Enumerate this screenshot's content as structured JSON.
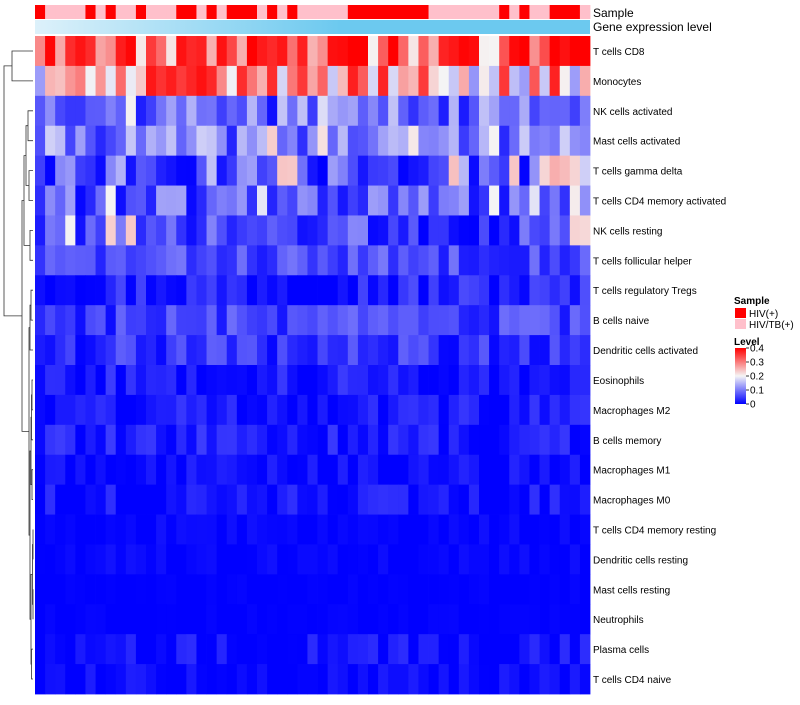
{
  "chart_data": {
    "type": "heatmap",
    "title": "",
    "annotation_tracks": [
      {
        "name": "Sample",
        "label": "Sample"
      },
      {
        "name": "Gene expression level",
        "label": "Gene expression level"
      }
    ],
    "sample_groups": [
      "HIV(+)",
      "HIV/TB(+)",
      "HIV/TB(+)",
      "HIV/TB(+)",
      "HIV/TB(+)",
      "HIV(+)",
      "HIV/TB(+)",
      "HIV(+)",
      "HIV/TB(+)",
      "HIV/TB(+)",
      "HIV(+)",
      "HIV/TB(+)",
      "HIV/TB(+)",
      "HIV/TB(+)",
      "HIV(+)",
      "HIV(+)",
      "HIV/TB(+)",
      "HIV(+)",
      "HIV/TB(+)",
      "HIV(+)",
      "HIV(+)",
      "HIV(+)",
      "HIV/TB(+)",
      "HIV(+)",
      "HIV/TB(+)",
      "HIV(+)",
      "HIV/TB(+)",
      "HIV/TB(+)",
      "HIV/TB(+)",
      "HIV/TB(+)",
      "HIV/TB(+)",
      "HIV(+)",
      "HIV(+)",
      "HIV(+)",
      "HIV(+)",
      "HIV(+)",
      "HIV(+)",
      "HIV(+)",
      "HIV(+)",
      "HIV/TB(+)",
      "HIV/TB(+)",
      "HIV/TB(+)",
      "HIV/TB(+)",
      "HIV/TB(+)",
      "HIV/TB(+)",
      "HIV/TB(+)",
      "HIV(+)",
      "HIV/TB(+)",
      "HIV(+)",
      "HIV/TB(+)",
      "HIV/TB(+)",
      "HIV(+)",
      "HIV(+)",
      "HIV(+)",
      "HIV/TB(+)"
    ],
    "rows": [
      "T cells CD8",
      "Monocytes",
      "NK cells activated",
      "Mast cells activated",
      "T cells gamma delta",
      "T cells CD4 memory activated",
      "NK cells resting",
      "T cells follicular helper",
      "T cells regulatory  Tregs",
      "B cells naive",
      "Dendritic cells activated",
      "Eosinophils",
      "Macrophages M2",
      "B cells memory",
      "Macrophages M1",
      "Macrophages M0",
      "T cells CD4 memory resting",
      "Dendritic cells resting",
      "Mast cells resting",
      "Neutrophils",
      "Plasma cells",
      "T cells CD4 naive"
    ],
    "row_profiles": [
      {
        "base": 0.33,
        "spread": 0.08,
        "seed": 11,
        "hot": [
          1,
          4,
          9,
          14,
          18,
          21,
          24,
          30,
          31,
          35,
          41,
          42,
          43,
          47,
          48,
          51,
          52,
          53
        ],
        "hot_value": 0.4,
        "cold": [
          10,
          13,
          33,
          37,
          44,
          45
        ],
        "cold_value": 0.2
      },
      {
        "base": 0.24,
        "spread": 0.09,
        "seed": 23,
        "hot": [
          11,
          12,
          13,
          14,
          15,
          16,
          17,
          20,
          23,
          26,
          31,
          34,
          38,
          46,
          51
        ],
        "hot_value": 0.37,
        "cold": [
          0,
          43,
          48,
          53
        ],
        "cold_value": 0.12
      },
      {
        "base": 0.1,
        "spread": 0.06,
        "seed": 37,
        "hot": [
          9,
          28,
          40
        ],
        "hot_value": 0.2,
        "cold": [
          10,
          23,
          40,
          42
        ],
        "cold_value": 0.01
      },
      {
        "base": 0.1,
        "spread": 0.07,
        "seed": 41,
        "hot": [
          23,
          28,
          37,
          45
        ],
        "hot_value": 0.22,
        "cold": [],
        "cold_value": 0.01
      },
      {
        "base": 0.09,
        "spread": 0.08,
        "seed": 53,
        "hot": [
          24,
          25,
          41,
          47,
          50,
          51,
          52,
          53
        ],
        "hot_value": 0.24,
        "cold": [
          1,
          6,
          13,
          14,
          15,
          28,
          36,
          37,
          43,
          48
        ],
        "cold_value": 0.0
      },
      {
        "base": 0.07,
        "spread": 0.07,
        "seed": 61,
        "hot": [
          7,
          22,
          45,
          49,
          53
        ],
        "hot_value": 0.2,
        "cold": [],
        "cold_value": 0.0
      },
      {
        "base": 0.05,
        "spread": 0.06,
        "seed": 73,
        "hot": [
          3,
          7,
          9,
          53,
          54
        ],
        "hot_value": 0.22,
        "cold": [],
        "cold_value": 0.0
      },
      {
        "base": 0.06,
        "spread": 0.04,
        "seed": 83,
        "hot": [],
        "hot_value": 0.14,
        "cold": [],
        "cold_value": 0.0
      },
      {
        "base": 0.03,
        "spread": 0.04,
        "seed": 97,
        "hot": [],
        "hot_value": 0.12,
        "cold": [],
        "cold_value": 0.0
      },
      {
        "base": 0.05,
        "spread": 0.04,
        "seed": 103,
        "hot": [],
        "hot_value": 0.12,
        "cold": [],
        "cold_value": 0.0
      },
      {
        "base": 0.04,
        "spread": 0.04,
        "seed": 109,
        "hot": [],
        "hot_value": 0.12,
        "cold": [],
        "cold_value": 0.0
      },
      {
        "base": 0.02,
        "spread": 0.03,
        "seed": 127,
        "hot": [],
        "hot_value": 0.1,
        "cold": [],
        "cold_value": 0.0
      },
      {
        "base": 0.02,
        "spread": 0.03,
        "seed": 131,
        "hot": [],
        "hot_value": 0.1,
        "cold": [],
        "cold_value": 0.0
      },
      {
        "base": 0.02,
        "spread": 0.03,
        "seed": 139,
        "hot": [],
        "hot_value": 0.1,
        "cold": [],
        "cold_value": 0.0
      },
      {
        "base": 0.01,
        "spread": 0.02,
        "seed": 149,
        "hot": [],
        "hot_value": 0.08,
        "cold": [],
        "cold_value": 0.0
      },
      {
        "base": 0.01,
        "spread": 0.03,
        "seed": 151,
        "hot": [],
        "hot_value": 0.08,
        "cold": [],
        "cold_value": 0.0
      },
      {
        "base": 0.005,
        "spread": 0.01,
        "seed": 157,
        "hot": [],
        "hot_value": 0.05,
        "cold": [],
        "cold_value": 0.0
      },
      {
        "base": 0.005,
        "spread": 0.01,
        "seed": 163,
        "hot": [],
        "hot_value": 0.05,
        "cold": [],
        "cold_value": 0.0
      },
      {
        "base": 0.0,
        "spread": 0.005,
        "seed": 167,
        "hot": [],
        "hot_value": 0.03,
        "cold": [],
        "cold_value": 0.0
      },
      {
        "base": 0.0,
        "spread": 0.005,
        "seed": 173,
        "hot": [],
        "hot_value": 0.03,
        "cold": [],
        "cold_value": 0.0
      },
      {
        "base": 0.01,
        "spread": 0.03,
        "seed": 179,
        "hot": [],
        "hot_value": 0.08,
        "cold": [],
        "cold_value": 0.0
      },
      {
        "base": 0.005,
        "spread": 0.02,
        "seed": 181,
        "hot": [],
        "hot_value": 0.08,
        "cold": [],
        "cold_value": 0.0
      }
    ],
    "color_scale": {
      "range": [
        0,
        0.4
      ],
      "stops": [
        {
          "value": 0.0,
          "color": "#0000FF"
        },
        {
          "value": 0.2,
          "color": "#F5F5F5"
        },
        {
          "value": 0.4,
          "color": "#FF0000"
        }
      ]
    },
    "legend": {
      "placement": "right",
      "sample": {
        "title": "Sample",
        "items": [
          {
            "label": "HIV(+)",
            "color": "#FF0000"
          },
          {
            "label": "HIV/TB(+)",
            "color": "#FFC0CB"
          }
        ]
      },
      "level": {
        "title": "Level",
        "ticks": [
          "0.4",
          "0.3",
          "0.2",
          "0.1",
          "0"
        ],
        "tick_values": [
          0.4,
          0.3,
          0.2,
          0.1,
          0.0
        ]
      }
    },
    "annotation_colors": {
      "gene_expression": "#6CC9EF",
      "gene_expression_light": "#DDF1FA"
    },
    "dendrogram": "hierarchical clustering of rows, drawn on the left"
  }
}
